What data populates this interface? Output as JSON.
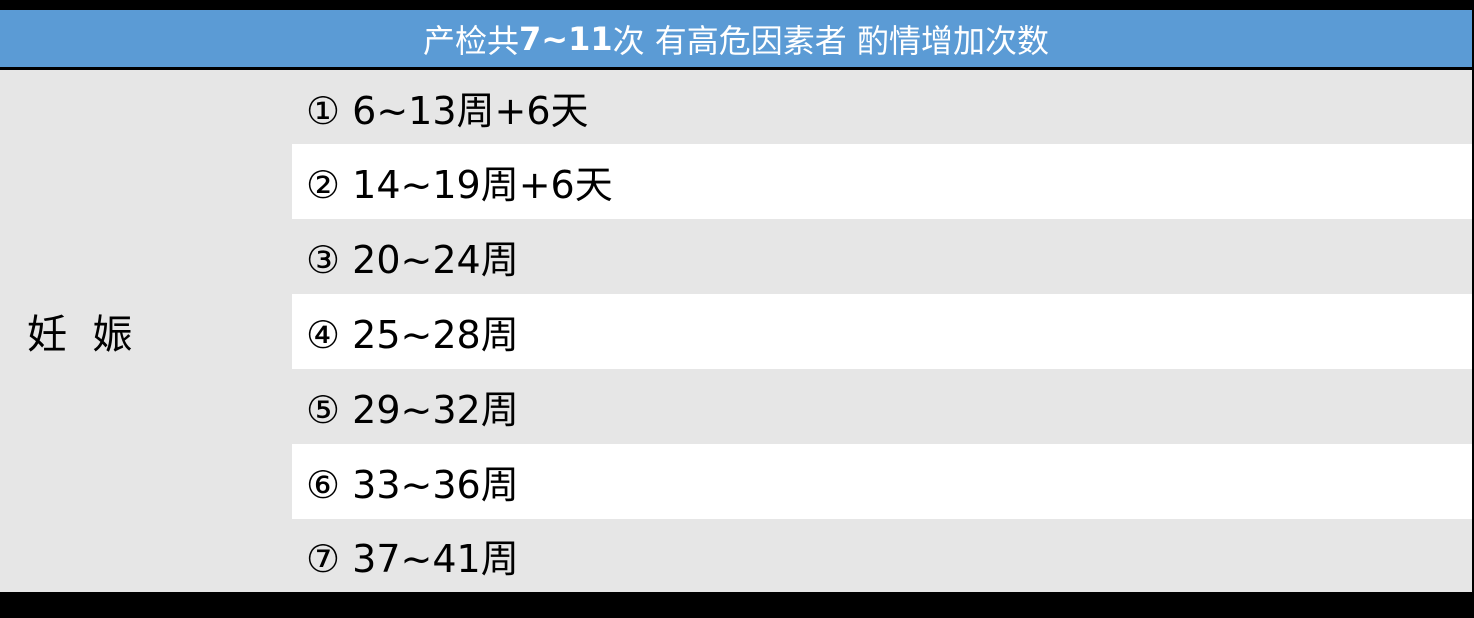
{
  "header": {
    "title_pre": "产检共",
    "title_bold": "7~11",
    "title_post": "次 有高危因素者 酌情增加次数"
  },
  "colors": {
    "header_bg": "#5b9bd5",
    "row_gray": "#e6e6e6",
    "row_white": "#ffffff",
    "frame": "#000000"
  },
  "left_label": "妊  娠",
  "rows": [
    {
      "label": "① 6~13周+6天"
    },
    {
      "label": "② 14~19周+6天"
    },
    {
      "label": "③ 20~24周"
    },
    {
      "label": "④ 25~28周"
    },
    {
      "label": "⑤ 29~32周"
    },
    {
      "label": "⑥ 33~36周"
    },
    {
      "label": "⑦ 37~41周"
    }
  ]
}
